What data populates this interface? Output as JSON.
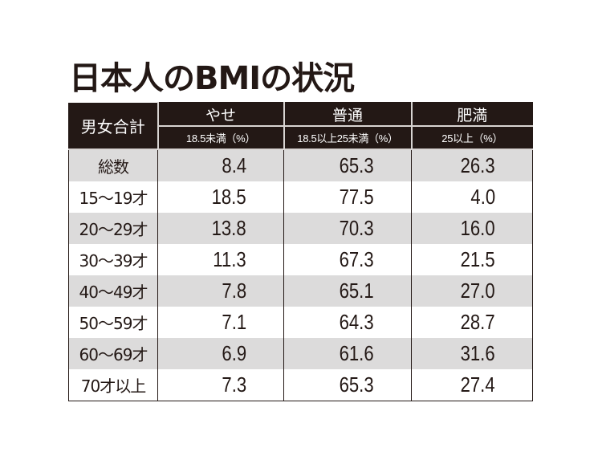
{
  "title": "日本人のBMIの状況",
  "table": {
    "corner_label": "男女合計",
    "columns": [
      {
        "label": "やせ",
        "sub": "18.5未満（%）"
      },
      {
        "label": "普通",
        "sub": "18.5以上25未満（%）"
      },
      {
        "label": "肥満",
        "sub": "25以上（%）"
      }
    ],
    "rows": [
      {
        "label": "総数",
        "values": [
          "8.4",
          "65.3",
          "26.3"
        ]
      },
      {
        "label": "15〜19才",
        "values": [
          "18.5",
          "77.5",
          "4.0"
        ]
      },
      {
        "label": "20〜29才",
        "values": [
          "13.8",
          "70.3",
          "16.0"
        ]
      },
      {
        "label": "30〜39才",
        "values": [
          "11.3",
          "67.3",
          "21.5"
        ]
      },
      {
        "label": "40〜49才",
        "values": [
          "7.8",
          "65.1",
          "27.0"
        ]
      },
      {
        "label": "50〜59才",
        "values": [
          "7.1",
          "64.3",
          "28.7"
        ]
      },
      {
        "label": "60〜69才",
        "values": [
          "6.9",
          "61.6",
          "31.6"
        ]
      },
      {
        "label": "70才以上",
        "values": [
          "7.3",
          "65.3",
          "27.4"
        ]
      }
    ]
  },
  "colors": {
    "header_bg": "#231815",
    "header_text": "#ffffff",
    "row_alt_bg": "#dcdbdb",
    "text": "#231815"
  }
}
